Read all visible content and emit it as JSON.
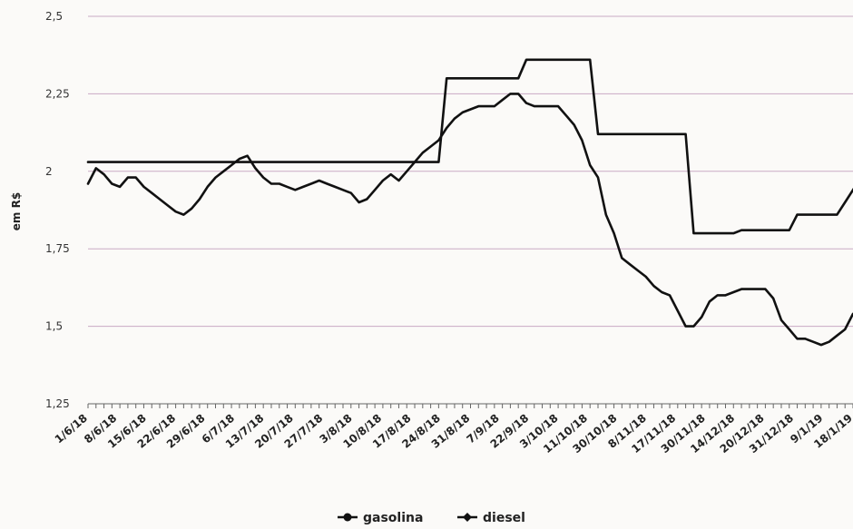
{
  "chart_data": {
    "type": "line",
    "title": "",
    "xlabel": "",
    "ylabel": "em R$",
    "ylim": [
      1.25,
      2.5
    ],
    "yticks": [
      "2,5",
      "2,25",
      "2",
      "1,75",
      "1,5",
      "1,25"
    ],
    "ytick_values": [
      2.5,
      2.25,
      2.0,
      1.75,
      1.5,
      1.25
    ],
    "grid": true,
    "legend_position": "bottom",
    "colors": {
      "line": "#111111",
      "grid": "#c9a9c4",
      "axis": "#666666"
    },
    "x_tick_labels": [
      "1/6/18",
      "8/6/18",
      "15/6/18",
      "22/6/18",
      "29/6/18",
      "6/7/18",
      "13/7/18",
      "20/7/18",
      "27/7/18",
      "3/8/18",
      "10/8/18",
      "17/8/18",
      "24/8/18",
      "31/8/18",
      "7/9/18",
      "22/9/18",
      "3/10/18",
      "11/10/18",
      "30/10/18",
      "8/11/18",
      "17/11/18",
      "30/11/18",
      "14/12/18",
      "20/12/18",
      "31/12/18",
      "9/1/19",
      "18/1/19"
    ],
    "series": [
      {
        "name": "gasolina",
        "values": [
          1.96,
          2.01,
          1.99,
          1.96,
          1.95,
          1.98,
          1.98,
          1.95,
          1.93,
          1.91,
          1.89,
          1.87,
          1.86,
          1.88,
          1.91,
          1.95,
          1.98,
          2.0,
          2.02,
          2.04,
          2.05,
          2.01,
          1.98,
          1.96,
          1.96,
          1.95,
          1.94,
          1.95,
          1.96,
          1.97,
          1.96,
          1.95,
          1.94,
          1.93,
          1.9,
          1.91,
          1.94,
          1.97,
          1.99,
          1.97,
          2.0,
          2.03,
          2.06,
          2.08,
          2.1,
          2.14,
          2.17,
          2.19,
          2.2,
          2.21,
          2.21,
          2.21,
          2.23,
          2.25,
          2.25,
          2.22,
          2.21,
          2.21,
          2.21,
          2.21,
          2.18,
          2.15,
          2.1,
          2.02,
          1.98,
          1.86,
          1.8,
          1.72,
          1.7,
          1.68,
          1.66,
          1.63,
          1.61,
          1.6,
          1.55,
          1.5,
          1.5,
          1.53,
          1.58,
          1.6,
          1.6,
          1.61,
          1.62,
          1.62,
          1.62,
          1.62,
          1.59,
          1.52,
          1.49,
          1.46,
          1.46,
          1.45,
          1.44,
          1.45,
          1.47,
          1.49,
          1.54
        ]
      },
      {
        "name": "diesel",
        "values": [
          2.03,
          2.03,
          2.03,
          2.03,
          2.03,
          2.03,
          2.03,
          2.03,
          2.03,
          2.03,
          2.03,
          2.03,
          2.03,
          2.03,
          2.03,
          2.03,
          2.03,
          2.03,
          2.03,
          2.03,
          2.03,
          2.03,
          2.03,
          2.03,
          2.03,
          2.03,
          2.03,
          2.03,
          2.03,
          2.03,
          2.03,
          2.03,
          2.03,
          2.03,
          2.03,
          2.03,
          2.03,
          2.03,
          2.03,
          2.03,
          2.03,
          2.03,
          2.03,
          2.03,
          2.03,
          2.3,
          2.3,
          2.3,
          2.3,
          2.3,
          2.3,
          2.3,
          2.3,
          2.3,
          2.3,
          2.36,
          2.36,
          2.36,
          2.36,
          2.36,
          2.36,
          2.36,
          2.36,
          2.36,
          2.12,
          2.12,
          2.12,
          2.12,
          2.12,
          2.12,
          2.12,
          2.12,
          2.12,
          2.12,
          2.12,
          2.12,
          1.8,
          1.8,
          1.8,
          1.8,
          1.8,
          1.8,
          1.81,
          1.81,
          1.81,
          1.81,
          1.81,
          1.81,
          1.81,
          1.86,
          1.86,
          1.86,
          1.86,
          1.86,
          1.86,
          1.9,
          1.94,
          1.98
        ]
      }
    ]
  }
}
